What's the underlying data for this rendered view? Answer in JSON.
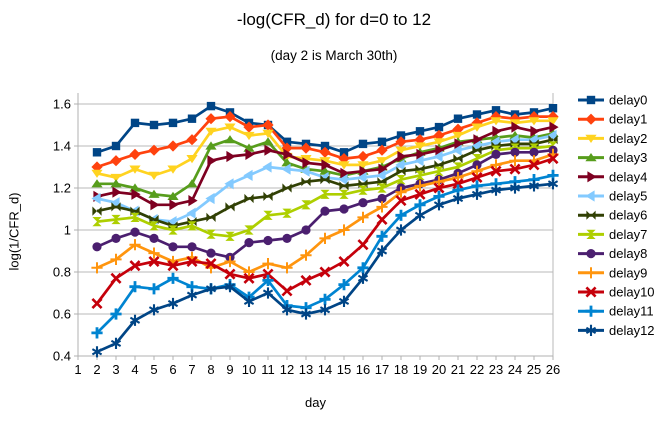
{
  "title": "-log(CFR_d) for d=0 to 12",
  "subtitle": "(day 2 is March 30th)",
  "chart_data": {
    "type": "line",
    "title": "-log(CFR_d) for d=0 to 12",
    "subtitle": "(day 2 is March 30th)",
    "xlabel": "day",
    "ylabel": "log(1/CFR_d)",
    "xlim": [
      1,
      26
    ],
    "ylim": [
      0.4,
      1.6
    ],
    "grid": true,
    "legend_position": "right",
    "x_ticks": [
      1,
      2,
      3,
      4,
      5,
      6,
      7,
      8,
      9,
      10,
      11,
      12,
      13,
      14,
      15,
      16,
      17,
      18,
      19,
      20,
      21,
      22,
      23,
      24,
      25,
      26
    ],
    "y_ticks": [
      0.4,
      0.6,
      0.8,
      1,
      1.2,
      1.4,
      1.6
    ],
    "x": [
      2,
      3,
      4,
      5,
      6,
      7,
      8,
      9,
      10,
      11,
      12,
      13,
      14,
      15,
      16,
      17,
      18,
      19,
      20,
      21,
      22,
      23,
      24,
      25,
      26
    ],
    "series": [
      {
        "name": "delay0",
        "color": "#004586",
        "marker": "square",
        "values": [
          1.37,
          1.4,
          1.51,
          1.5,
          1.51,
          1.53,
          1.59,
          1.56,
          1.51,
          1.5,
          1.42,
          1.41,
          1.4,
          1.37,
          1.41,
          1.42,
          1.45,
          1.47,
          1.49,
          1.53,
          1.55,
          1.57,
          1.55,
          1.56,
          1.58
        ]
      },
      {
        "name": "delay1",
        "color": "#ff420e",
        "marker": "diamond",
        "values": [
          1.3,
          1.33,
          1.36,
          1.38,
          1.4,
          1.43,
          1.53,
          1.54,
          1.49,
          1.5,
          1.39,
          1.39,
          1.37,
          1.34,
          1.35,
          1.38,
          1.42,
          1.43,
          1.45,
          1.48,
          1.51,
          1.54,
          1.53,
          1.54,
          1.54
        ]
      },
      {
        "name": "delay2",
        "color": "#ffd320",
        "marker": "triangle-down",
        "values": [
          1.27,
          1.25,
          1.29,
          1.26,
          1.29,
          1.34,
          1.47,
          1.49,
          1.45,
          1.46,
          1.35,
          1.34,
          1.33,
          1.31,
          1.31,
          1.33,
          1.38,
          1.4,
          1.42,
          1.45,
          1.49,
          1.52,
          1.51,
          1.52,
          1.52
        ]
      },
      {
        "name": "delay3",
        "color": "#579d1c",
        "marker": "triangle-up",
        "values": [
          1.22,
          1.22,
          1.2,
          1.17,
          1.16,
          1.22,
          1.4,
          1.43,
          1.39,
          1.42,
          1.32,
          1.29,
          1.28,
          1.26,
          1.28,
          1.3,
          1.34,
          1.37,
          1.39,
          1.42,
          1.43,
          1.44,
          1.45,
          1.44,
          1.46
        ]
      },
      {
        "name": "delay4",
        "color": "#7e0021",
        "marker": "arrow-right",
        "values": [
          1.16,
          1.18,
          1.17,
          1.12,
          1.12,
          1.14,
          1.33,
          1.35,
          1.36,
          1.38,
          1.36,
          1.32,
          1.31,
          1.27,
          1.28,
          1.29,
          1.35,
          1.36,
          1.38,
          1.41,
          1.43,
          1.47,
          1.49,
          1.47,
          1.49
        ]
      },
      {
        "name": "delay5",
        "color": "#83caff",
        "marker": "arrow-left",
        "values": [
          1.15,
          1.13,
          1.09,
          1.05,
          1.04,
          1.08,
          1.15,
          1.22,
          1.26,
          1.3,
          1.29,
          1.28,
          1.25,
          1.24,
          1.25,
          1.26,
          1.31,
          1.33,
          1.35,
          1.38,
          1.4,
          1.42,
          1.43,
          1.43,
          1.45
        ]
      },
      {
        "name": "delay6",
        "color": "#314004",
        "marker": "bowtie",
        "values": [
          1.09,
          1.11,
          1.09,
          1.05,
          1.02,
          1.04,
          1.06,
          1.11,
          1.15,
          1.16,
          1.2,
          1.23,
          1.24,
          1.21,
          1.22,
          1.23,
          1.28,
          1.29,
          1.31,
          1.34,
          1.38,
          1.4,
          1.41,
          1.41,
          1.43
        ]
      },
      {
        "name": "delay7",
        "color": "#aecf00",
        "marker": "hourglass",
        "values": [
          1.04,
          1.05,
          1.06,
          1.02,
          1.0,
          1.02,
          0.98,
          0.97,
          1.0,
          1.07,
          1.08,
          1.12,
          1.17,
          1.17,
          1.19,
          1.2,
          1.24,
          1.26,
          1.28,
          1.3,
          1.34,
          1.38,
          1.39,
          1.39,
          1.4
        ]
      },
      {
        "name": "delay8",
        "color": "#4b1f6f",
        "marker": "circle",
        "values": [
          0.92,
          0.96,
          0.99,
          0.96,
          0.92,
          0.92,
          0.89,
          0.87,
          0.94,
          0.95,
          0.96,
          1.0,
          1.09,
          1.1,
          1.13,
          1.15,
          1.2,
          1.22,
          1.24,
          1.27,
          1.31,
          1.36,
          1.37,
          1.37,
          1.38
        ]
      },
      {
        "name": "delay9",
        "color": "#ff950e",
        "marker": "plus-thin",
        "values": [
          0.82,
          0.86,
          0.93,
          0.89,
          0.85,
          0.87,
          0.82,
          0.85,
          0.8,
          0.84,
          0.82,
          0.88,
          0.96,
          1.0,
          1.06,
          1.11,
          1.18,
          1.21,
          1.23,
          1.25,
          1.28,
          1.31,
          1.33,
          1.33,
          1.36
        ]
      },
      {
        "name": "delay10",
        "color": "#c5000b",
        "marker": "x",
        "values": [
          0.65,
          0.77,
          0.83,
          0.85,
          0.83,
          0.85,
          0.84,
          0.79,
          0.77,
          0.79,
          0.71,
          0.76,
          0.8,
          0.85,
          0.93,
          1.05,
          1.14,
          1.17,
          1.2,
          1.22,
          1.25,
          1.28,
          1.29,
          1.31,
          1.34
        ]
      },
      {
        "name": "delay11",
        "color": "#0084d1",
        "marker": "plus",
        "values": [
          0.51,
          0.6,
          0.73,
          0.72,
          0.77,
          0.73,
          0.72,
          0.74,
          0.68,
          0.76,
          0.64,
          0.63,
          0.67,
          0.74,
          0.82,
          0.97,
          1.07,
          1.12,
          1.16,
          1.19,
          1.21,
          1.22,
          1.23,
          1.24,
          1.26
        ]
      },
      {
        "name": "delay12",
        "color": "#004586",
        "marker": "asterisk",
        "values": [
          0.42,
          0.46,
          0.57,
          0.62,
          0.65,
          0.69,
          0.72,
          0.73,
          0.66,
          0.7,
          0.62,
          0.6,
          0.62,
          0.66,
          0.77,
          0.9,
          1.0,
          1.07,
          1.12,
          1.15,
          1.17,
          1.19,
          1.2,
          1.21,
          1.22
        ]
      }
    ],
    "colors": {
      "grid": "#b9b9b9",
      "axis": "#b0b0b0",
      "text": "#000000",
      "background": "#ffffff"
    }
  }
}
